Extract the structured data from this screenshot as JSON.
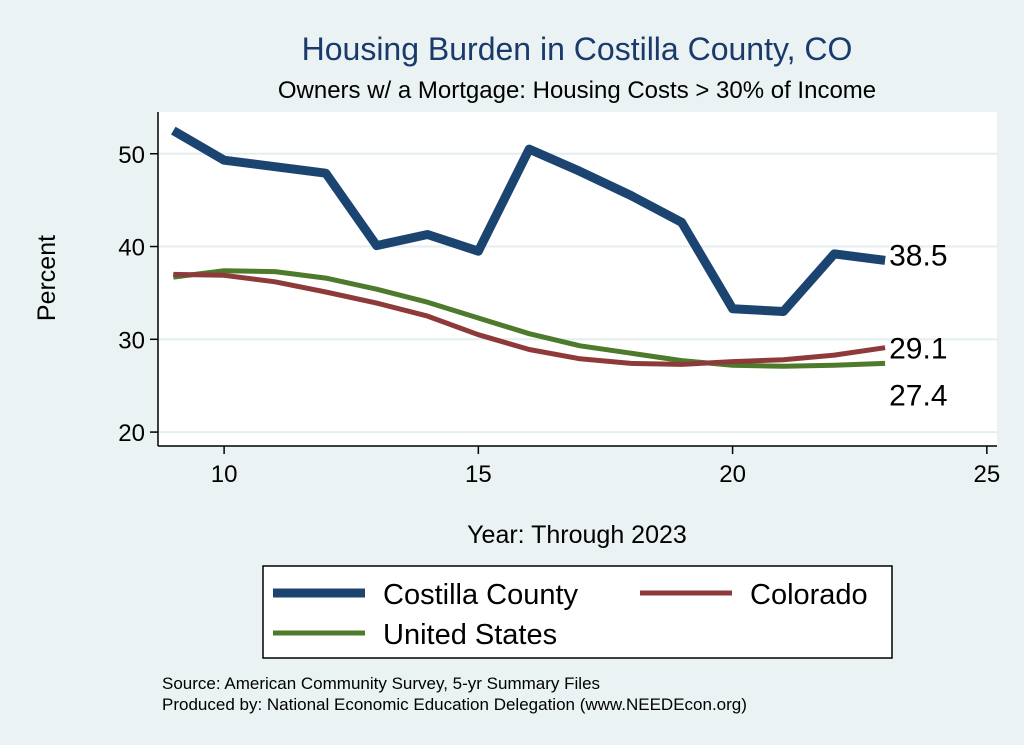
{
  "chart_data": {
    "type": "line",
    "title": "Housing Burden in Costilla County, CO",
    "subtitle": "Owners w/ a Mortgage: Housing Costs > 30% of Income",
    "xlabel": "Year: Through 2023",
    "ylabel": "Percent",
    "xlim": [
      8.7,
      25.2
    ],
    "ylim": [
      18.5,
      54.5
    ],
    "xticks": [
      10,
      15,
      20,
      25
    ],
    "yticks": [
      20,
      30,
      40,
      50
    ],
    "grid": true,
    "legend_position": "bottom",
    "series": [
      {
        "name": "Costilla County",
        "color": "#1b4470",
        "x": [
          9,
          10,
          11,
          12,
          13,
          14,
          15,
          16,
          17,
          18,
          19,
          20,
          21,
          22,
          23
        ],
        "values": [
          52.5,
          49.3,
          48.6,
          47.9,
          40.1,
          41.3,
          39.5,
          50.5,
          48.1,
          45.5,
          42.6,
          33.3,
          33.0,
          39.2,
          38.5
        ],
        "end_label": "38.5"
      },
      {
        "name": "Colorado",
        "color": "#8f3a3a",
        "x": [
          9,
          10,
          11,
          12,
          13,
          14,
          15,
          16,
          17,
          18,
          19,
          20,
          21,
          22,
          23
        ],
        "values": [
          37.0,
          36.9,
          36.2,
          35.1,
          33.9,
          32.5,
          30.5,
          28.9,
          27.9,
          27.4,
          27.3,
          27.6,
          27.8,
          28.3,
          29.1
        ],
        "end_label": "29.1"
      },
      {
        "name": "United States",
        "color": "#4d7a2b",
        "x": [
          9,
          10,
          11,
          12,
          13,
          14,
          15,
          16,
          17,
          18,
          19,
          20,
          21,
          22,
          23
        ],
        "values": [
          36.7,
          37.4,
          37.3,
          36.6,
          35.4,
          34.0,
          32.3,
          30.6,
          29.3,
          28.5,
          27.7,
          27.2,
          27.1,
          27.2,
          27.4
        ],
        "end_label": "27.4"
      }
    ]
  },
  "legend": {
    "items": [
      "Costilla County",
      "Colorado",
      "United States"
    ]
  },
  "notes": {
    "source": "Source: American Community Survey, 5-yr Summary Files",
    "produced": "Produced by: National Economic Education Delegation (www.NEEDEcon.org)"
  }
}
